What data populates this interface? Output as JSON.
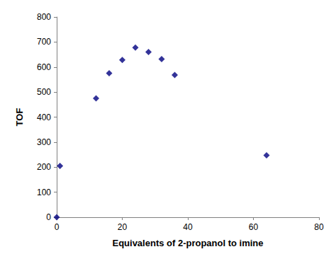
{
  "chart_data": {
    "type": "scatter",
    "x_label": "Equivalents of 2-propanol to imine",
    "y_label": "TOF",
    "x": [
      0,
      1,
      12,
      16,
      20,
      24,
      28,
      32,
      36,
      64
    ],
    "values": [
      0,
      205,
      475,
      575,
      628,
      678,
      660,
      632,
      568,
      247
    ],
    "color": "#000080",
    "marker": "diamond",
    "xlim": [
      0,
      80
    ],
    "xticks": [
      0,
      20,
      40,
      60,
      80
    ],
    "ylim": [
      0,
      800
    ],
    "yticks": [
      0,
      100,
      200,
      300,
      400,
      500,
      600,
      700,
      800
    ],
    "grid": false
  }
}
